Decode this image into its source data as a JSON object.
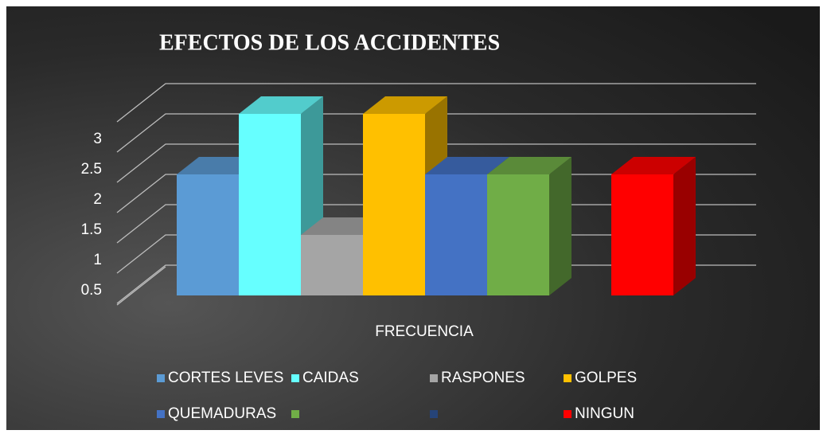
{
  "chart_data": {
    "type": "bar3d",
    "title": "EFECTOS DE LOS ACCIDENTES",
    "x_label": "FRECUENCIA",
    "ylim": [
      0,
      3.5
    ],
    "yticks": [
      0.5,
      1,
      1.5,
      2,
      2.5,
      3
    ],
    "grid": true,
    "legend": "bottom",
    "series": [
      {
        "name": "CORTES LEVES",
        "color": "#5b9bd5",
        "values": [
          2
        ]
      },
      {
        "name": "CAIDAS",
        "color": "#66ffff",
        "values": [
          3
        ]
      },
      {
        "name": "RASPONES",
        "color": "#a5a5a5",
        "values": [
          1
        ]
      },
      {
        "name": "GOLPES",
        "color": "#ffc000",
        "values": [
          3
        ]
      },
      {
        "name": "QUEMADURAS",
        "color": "#4472c4",
        "values": [
          2
        ]
      },
      {
        "name": null,
        "color": "#70ad47",
        "values": [
          2
        ]
      },
      {
        "name": null,
        "color": "#264478",
        "values": [
          0
        ]
      },
      {
        "name": "NINGUN",
        "color": "#ff0000",
        "values": [
          2
        ]
      }
    ]
  }
}
